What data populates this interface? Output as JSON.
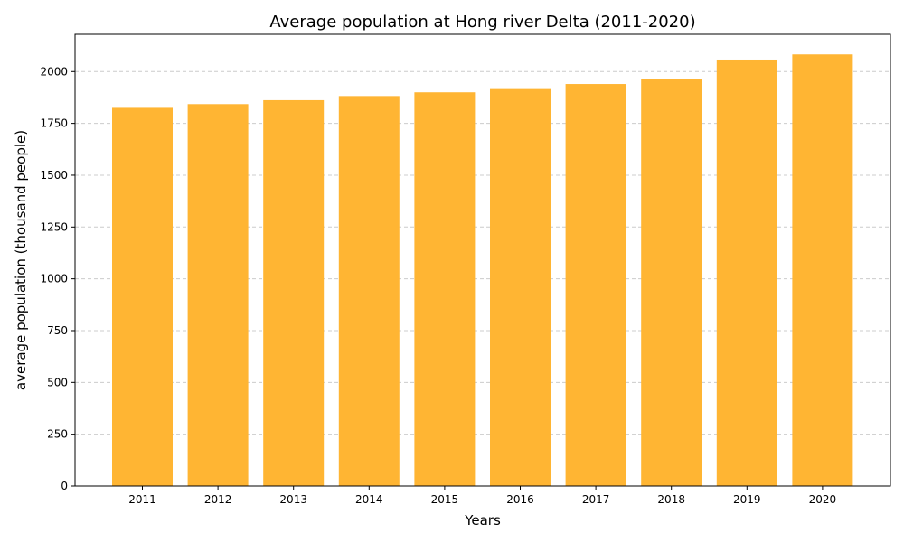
{
  "chart_data": {
    "type": "bar",
    "title": "Average population at Hong river Delta (2011-2020)",
    "xlabel": "Years",
    "ylabel": "average population (thousand people)",
    "categories": [
      "2011",
      "2012",
      "2013",
      "2014",
      "2015",
      "2016",
      "2017",
      "2018",
      "2019",
      "2020"
    ],
    "values": [
      1825,
      1843,
      1862,
      1882,
      1900,
      1920,
      1940,
      1962,
      2058,
      2083
    ],
    "ylim": [
      0,
      2180
    ],
    "yticks": [
      0,
      250,
      500,
      750,
      1000,
      1250,
      1500,
      1750,
      2000
    ],
    "bar_color": "#ffb533",
    "grid": "y-dashed",
    "legend": "none"
  }
}
